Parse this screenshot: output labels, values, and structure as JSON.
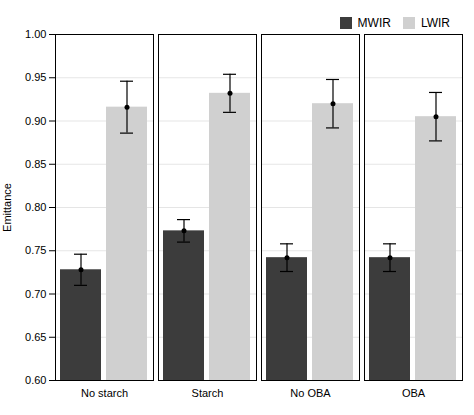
{
  "chart_data": {
    "type": "bar",
    "categories": [
      "No starch",
      "Starch",
      "No OBA",
      "OBA"
    ],
    "series": [
      {
        "name": "MWIR",
        "color": "#3c3c3c",
        "values": [
          0.728,
          0.773,
          0.742,
          0.742
        ],
        "errors": [
          0.018,
          0.013,
          0.016,
          0.016
        ]
      },
      {
        "name": "LWIR",
        "color": "#d0d0d0",
        "values": [
          0.916,
          0.932,
          0.92,
          0.905
        ],
        "errors": [
          0.03,
          0.022,
          0.028,
          0.028
        ]
      }
    ],
    "ylabel": "Emittance",
    "ylim": [
      0.6,
      1.0
    ],
    "yticks": [
      {
        "value": 0.6,
        "label": "0.60"
      },
      0.65,
      {
        "value": 0.7,
        "label": "0.70"
      },
      0.75,
      {
        "value": 0.8,
        "label": "0.80"
      },
      0.85,
      {
        "value": 0.9,
        "label": "0.90"
      },
      0.95,
      {
        "value": 1.0,
        "label": "1.00"
      }
    ],
    "grid": true,
    "legend": "upper right"
  }
}
